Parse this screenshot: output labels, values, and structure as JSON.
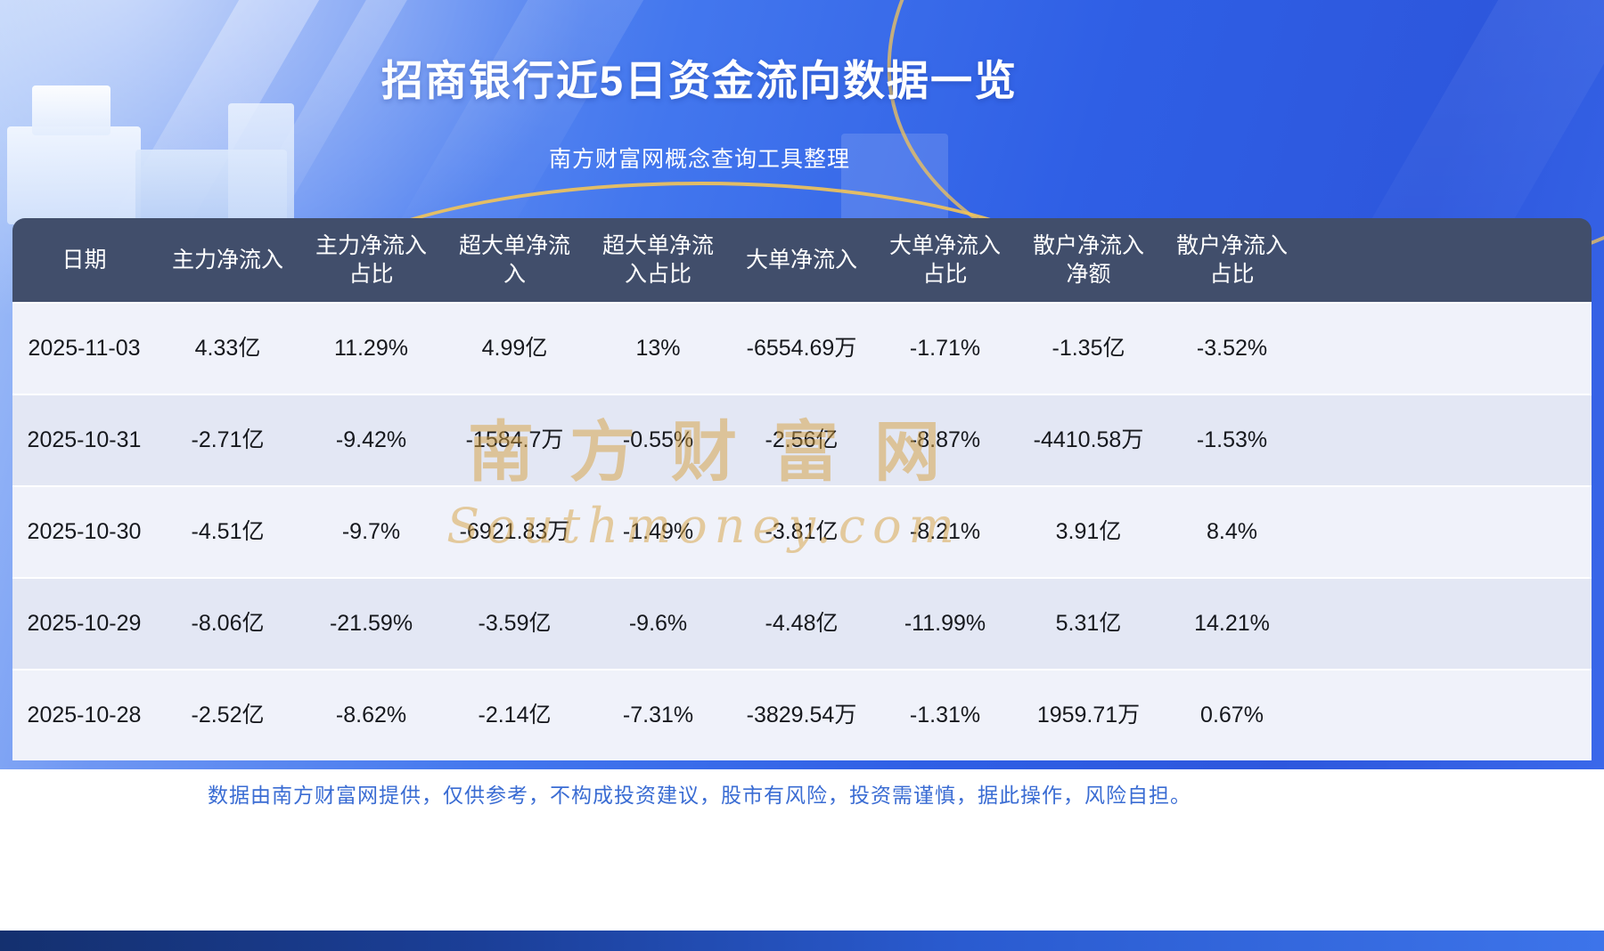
{
  "chart_data": {
    "type": "table",
    "title": "招商银行近5日资金流向数据一览",
    "subtitle": "南方财富网概念查询工具整理",
    "columns": [
      "日期",
      "主力净流入",
      "主力净流入占比",
      "超大单净流入",
      "超大单净流入占比",
      "大单净流入",
      "大单净流入占比",
      "散户净流入净额",
      "散户净流入占比"
    ],
    "rows": [
      [
        "2025-11-03",
        "4.33亿",
        "11.29%",
        "4.99亿",
        "13%",
        "-6554.69万",
        "-1.71%",
        "-1.35亿",
        "-3.52%"
      ],
      [
        "2025-10-31",
        "-2.71亿",
        "-9.42%",
        "-1584.7万",
        "-0.55%",
        "-2.56亿",
        "-8.87%",
        "-4410.58万",
        "-1.53%"
      ],
      [
        "2025-10-30",
        "-4.51亿",
        "-9.7%",
        "-6921.83万",
        "-1.49%",
        "-3.81亿",
        "-8.21%",
        "3.91亿",
        "8.4%"
      ],
      [
        "2025-10-29",
        "-8.06亿",
        "-21.59%",
        "-3.59亿",
        "-9.6%",
        "-4.48亿",
        "-11.99%",
        "5.31亿",
        "14.21%"
      ],
      [
        "2025-10-28",
        "-2.52亿",
        "-8.62%",
        "-2.14亿",
        "-7.31%",
        "-3829.54万",
        "-1.31%",
        "1959.71万",
        "0.67%"
      ]
    ]
  },
  "watermark": {
    "line1": "南方财富网",
    "line2": "Southmoney.com"
  },
  "footer": {
    "disclaimer": "数据由南方财富网提供，仅供参考，不构成投资建议，股市有风险，投资需谨慎，据此操作，风险自担。"
  },
  "colors": {
    "background_blue": "#3a6cec",
    "header_bg": "#414e6b",
    "row_odd": "#f0f2fa",
    "row_even": "#e3e7f4",
    "accent_gold": "#e8bc5e",
    "footer_text": "#3a6cd3",
    "title_text": "#ffffff"
  }
}
